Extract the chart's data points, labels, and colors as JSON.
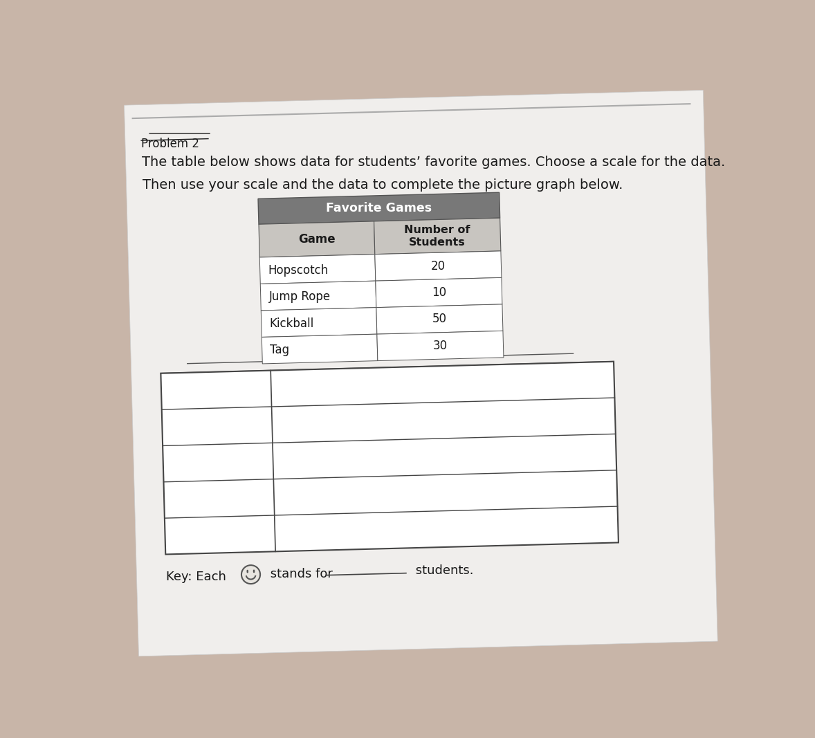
{
  "title_problem": "Problem 2",
  "description_line1": "The table below shows data for students’ favorite games. Choose a scale for the data.",
  "description_line2": "Then use your scale and the data to complete the picture graph below.",
  "table_title": "Favorite Games",
  "table_col1_header": "Game",
  "table_col2_header": "Number of\nStudents",
  "table_rows": [
    [
      "Hopscotch",
      "20"
    ],
    [
      "Jump Rope",
      "10"
    ],
    [
      "Kickball",
      "50"
    ],
    [
      "Tag",
      "30"
    ]
  ],
  "key_text": "Key: Each",
  "key_suffix": " stands for ",
  "key_blank_suffix": " students.",
  "bg_color": "#c8b5a8",
  "paper_color": "#f0eeec",
  "table_header_bg": "#787878",
  "table_header_text": "#ffffff",
  "table_border": "#555555",
  "table_row_bg": "#ffffff",
  "subheader_bg": "#c8c5c0",
  "text_color": "#1a1a1a",
  "rotation_deg": 1.5
}
